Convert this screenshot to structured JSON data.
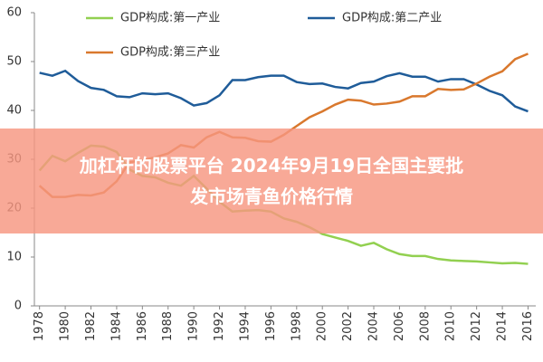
{
  "chart_data": {
    "type": "line",
    "x": [
      1978,
      1979,
      1980,
      1981,
      1982,
      1983,
      1984,
      1985,
      1986,
      1987,
      1988,
      1989,
      1990,
      1991,
      1992,
      1993,
      1994,
      1995,
      1996,
      1997,
      1998,
      1999,
      2000,
      2001,
      2002,
      2003,
      2004,
      2005,
      2006,
      2007,
      2008,
      2009,
      2010,
      2011,
      2012,
      2013,
      2014,
      2015,
      2016
    ],
    "series": [
      {
        "name": "GDP构成:第一产业",
        "color": "#92d050",
        "values": [
          27.7,
          30.7,
          29.6,
          31.3,
          32.8,
          32.6,
          31.5,
          27.9,
          26.6,
          26.3,
          25.2,
          24.6,
          26.6,
          24.0,
          21.3,
          19.3,
          19.5,
          19.6,
          19.3,
          17.9,
          17.2,
          16.1,
          14.7,
          14.0,
          13.3,
          12.3,
          12.9,
          11.6,
          10.6,
          10.2,
          10.2,
          9.6,
          9.3,
          9.2,
          9.1,
          8.9,
          8.7,
          8.8,
          8.6
        ]
      },
      {
        "name": "GDP构成:第二产业",
        "color": "#1f5c99",
        "values": [
          47.7,
          47.1,
          48.1,
          46.0,
          44.6,
          44.2,
          42.9,
          42.7,
          43.5,
          43.3,
          43.5,
          42.5,
          41.0,
          41.5,
          43.1,
          46.2,
          46.2,
          46.8,
          47.1,
          47.1,
          45.8,
          45.4,
          45.5,
          44.8,
          44.5,
          45.6,
          45.9,
          47.0,
          47.6,
          46.9,
          46.9,
          45.9,
          46.4,
          46.4,
          45.3,
          44.0,
          43.1,
          40.8,
          39.8
        ]
      },
      {
        "name": "GDP构成:第三产业",
        "color": "#d9782d",
        "values": [
          24.6,
          22.3,
          22.3,
          22.7,
          22.6,
          23.2,
          25.5,
          29.4,
          29.8,
          30.4,
          31.2,
          32.9,
          32.4,
          34.5,
          35.6,
          34.5,
          34.4,
          33.7,
          33.6,
          35.0,
          36.8,
          38.6,
          39.8,
          41.2,
          42.2,
          42.0,
          41.2,
          41.4,
          41.8,
          42.9,
          42.9,
          44.4,
          44.2,
          44.3,
          45.5,
          46.9,
          48.0,
          50.5,
          51.6
        ]
      }
    ],
    "xlim": [
      1977.6,
      2016.6
    ],
    "xticks": [
      1978,
      1980,
      1982,
      1984,
      1986,
      1988,
      1990,
      1992,
      1994,
      1996,
      1998,
      2000,
      2002,
      2004,
      2006,
      2008,
      2010,
      2012,
      2014,
      2016
    ],
    "ylim": [
      0,
      60
    ],
    "yticks": [
      0,
      10,
      20,
      30,
      40,
      50,
      60
    ]
  },
  "overlay": {
    "lines": [
      "加杠杆的股票平台 2024年9月19日全国主要批",
      "发市场青鱼价格行情"
    ]
  }
}
